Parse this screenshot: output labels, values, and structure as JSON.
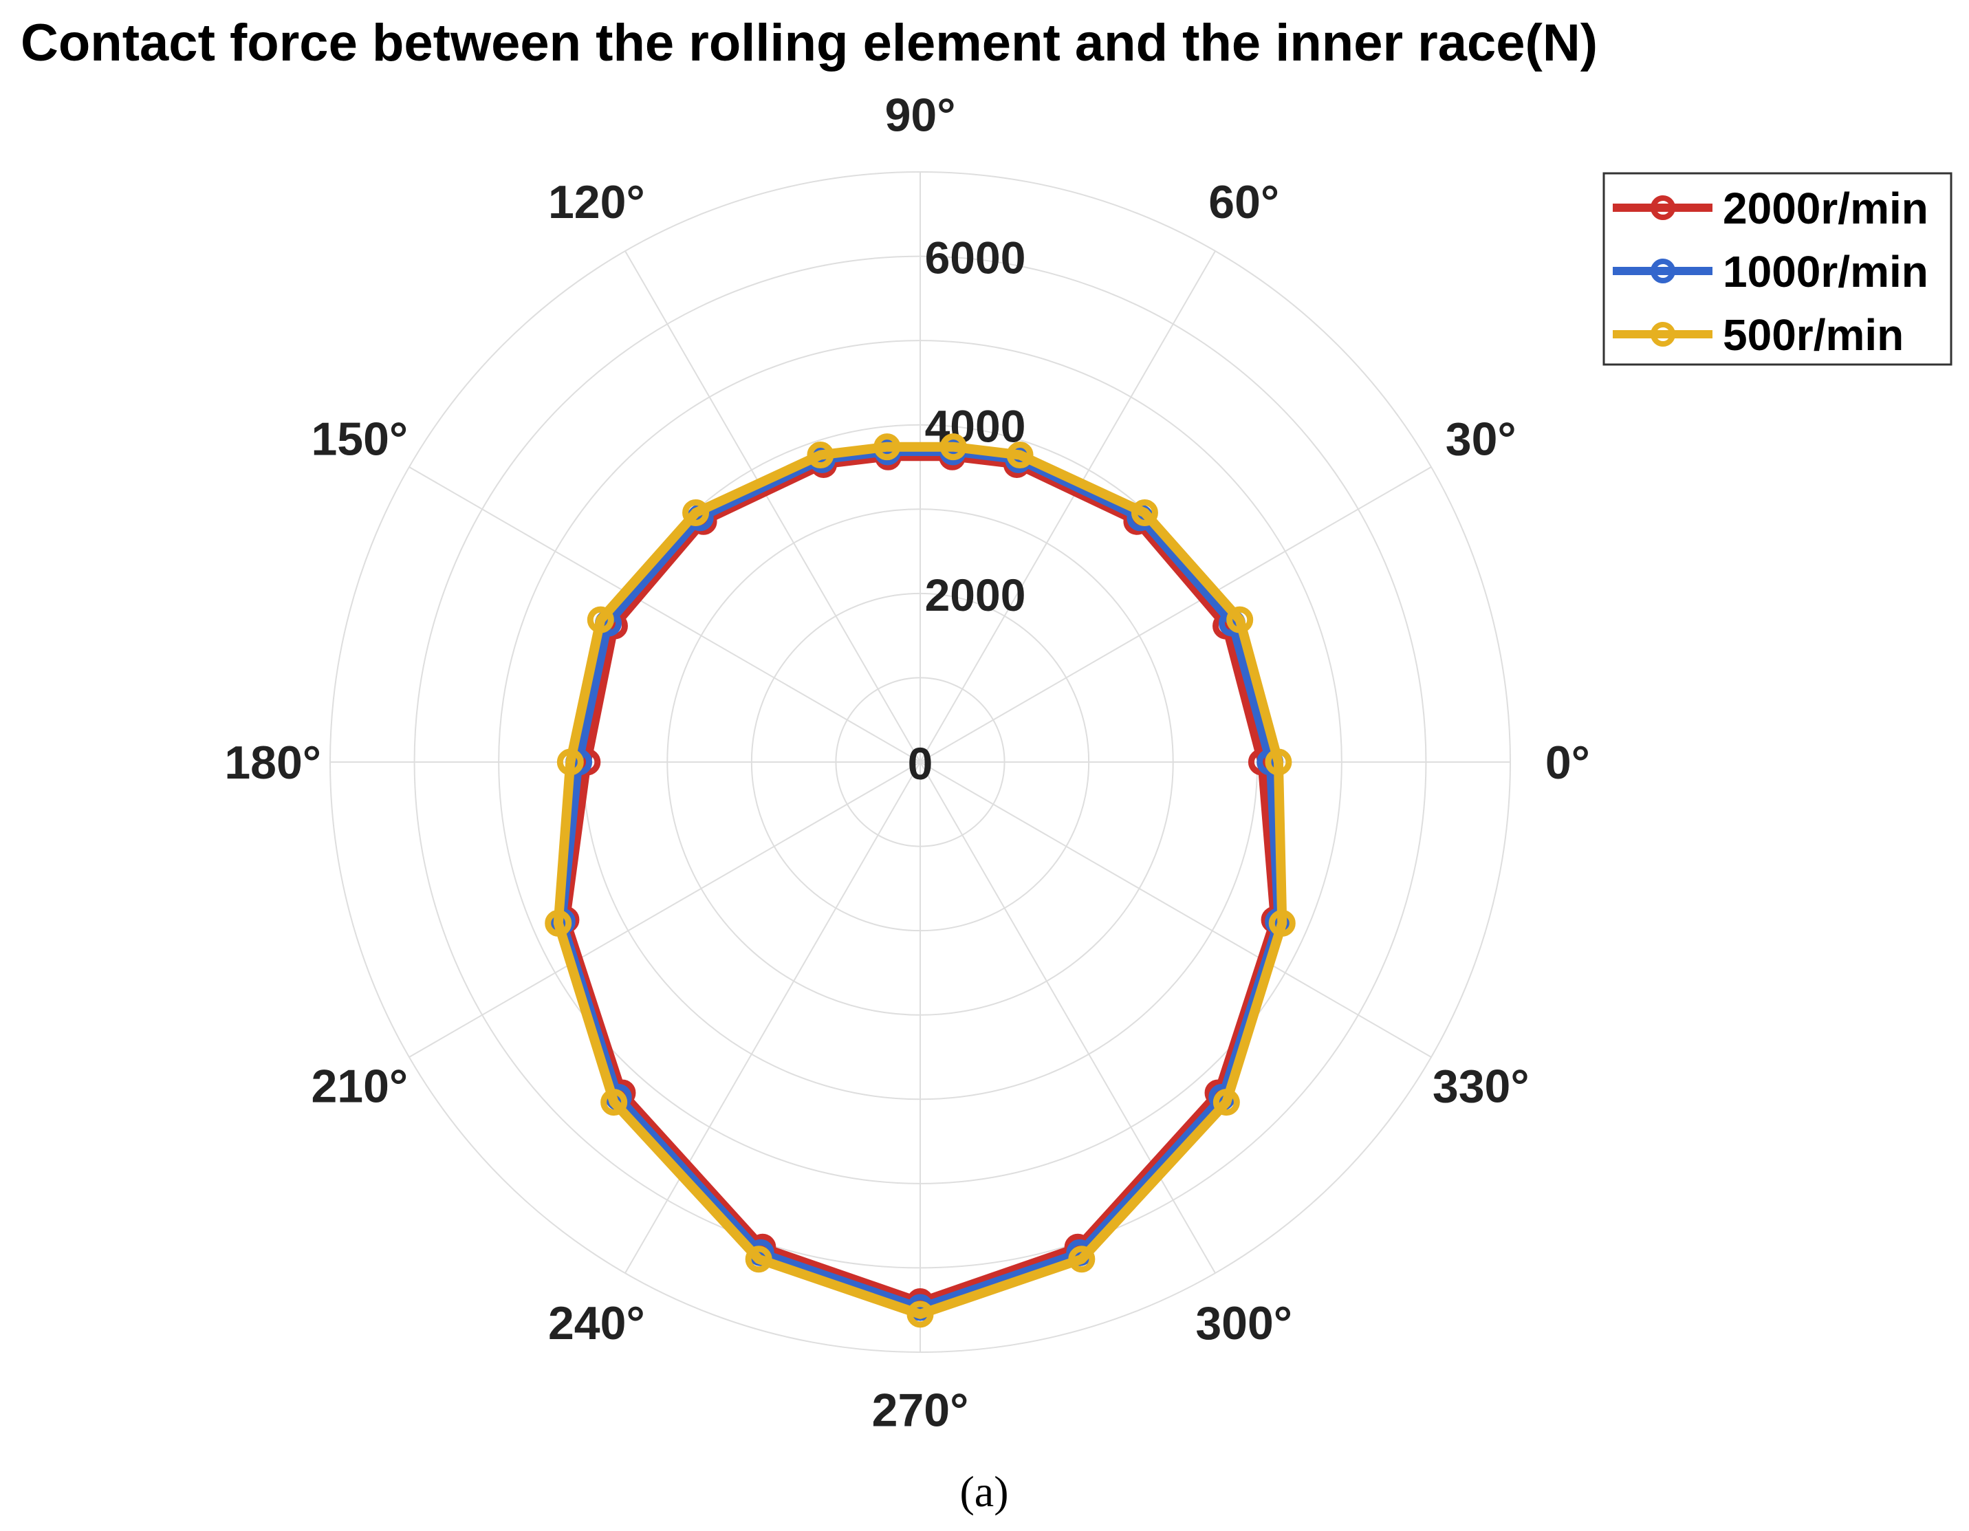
{
  "chart_data": {
    "type": "polar-line",
    "title": "Contact force between the rolling element and the inner race(N)",
    "caption": "(a)",
    "theta_ticks": [
      {
        "angle": 0,
        "label": "0°"
      },
      {
        "angle": 30,
        "label": "30°"
      },
      {
        "angle": 60,
        "label": "60°"
      },
      {
        "angle": 90,
        "label": "90°"
      },
      {
        "angle": 120,
        "label": "120°"
      },
      {
        "angle": 150,
        "label": "150°"
      },
      {
        "angle": 180,
        "label": "180°"
      },
      {
        "angle": 210,
        "label": "210°"
      },
      {
        "angle": 240,
        "label": "240°"
      },
      {
        "angle": 270,
        "label": "270°"
      },
      {
        "angle": 300,
        "label": "300°"
      },
      {
        "angle": 330,
        "label": "330°"
      }
    ],
    "r_ticks": [
      {
        "value": 0,
        "label": "0"
      },
      {
        "value": 2000,
        "label": "2000"
      },
      {
        "value": 4000,
        "label": "4000"
      },
      {
        "value": 6000,
        "label": "6000"
      }
    ],
    "rlim": [
      0,
      7000
    ],
    "theta_deg": [
      0,
      24,
      48,
      72,
      84,
      96,
      108,
      132,
      156,
      180,
      204,
      228,
      252,
      270,
      288,
      312,
      336
    ],
    "legend_position": "top-right",
    "grid": true,
    "series": [
      {
        "name": "2000r/min",
        "color": "#cc2f2a",
        "values": [
          4050,
          3970,
          3840,
          3710,
          3640,
          3640,
          3710,
          3840,
          3970,
          3950,
          4600,
          5280,
          6050,
          6400,
          6050,
          5280,
          4600
        ]
      },
      {
        "name": "1000r/min",
        "color": "#3366cc",
        "values": [
          4150,
          4050,
          3900,
          3770,
          3700,
          3700,
          3770,
          3900,
          4050,
          4050,
          4650,
          5350,
          6120,
          6470,
          6120,
          5350,
          4650
        ]
      },
      {
        "name": "500r/min",
        "color": "#e6b020",
        "values": [
          4250,
          4150,
          3980,
          3830,
          3760,
          3760,
          3830,
          3980,
          4150,
          4150,
          4700,
          5430,
          6200,
          6550,
          6200,
          5430,
          4700
        ]
      }
    ]
  }
}
